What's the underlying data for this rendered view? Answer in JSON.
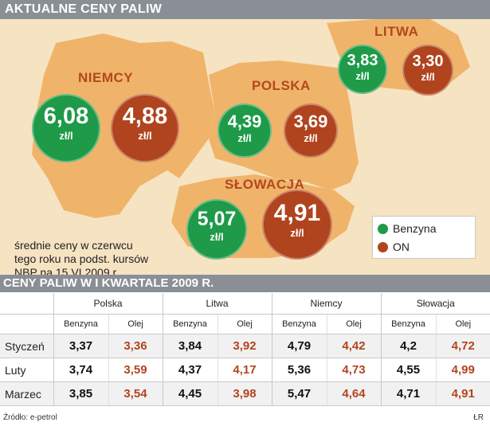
{
  "header_top": "AKTUALNE CENY PALIW",
  "header_table": "CENY PALIW W I KWARTALE 2009 R.",
  "map": {
    "countries": {
      "niemcy": "NIEMCY",
      "polska": "POLSKA",
      "litwa": "LITWA",
      "slowacja": "SŁOWACJA"
    },
    "unit": "zł/l",
    "prices": {
      "niemcy": {
        "benzyna": "6,08",
        "on": "4,88"
      },
      "polska": {
        "benzyna": "4,39",
        "on": "3,69"
      },
      "litwa": {
        "benzyna": "3,83",
        "on": "3,30"
      },
      "slowacja": {
        "benzyna": "5,07",
        "on": "4,91"
      }
    },
    "note": {
      "line1": "średnie ceny w czerwcu",
      "line2": "tego roku na podst. kursów",
      "line3": "NBP na 15 VI 2009 r."
    },
    "legend": {
      "benzyna": "Benzyna",
      "on": "ON"
    },
    "colors": {
      "benzyna": "#1e9a48",
      "on": "#b0441f",
      "land": "#efb46a",
      "background": "#f6e3c2"
    }
  },
  "table": {
    "countries": [
      "Polska",
      "Litwa",
      "Niemcy",
      "Słowacja"
    ],
    "sub_headers": {
      "benzyna": "Benzyna",
      "olej": "Olej"
    },
    "rows": [
      {
        "month": "Styczeń",
        "values": [
          "3,37",
          "3,36",
          "3,84",
          "3,92",
          "4,79",
          "4,42",
          "4,2",
          "4,72"
        ]
      },
      {
        "month": "Luty",
        "values": [
          "3,74",
          "3,59",
          "4,37",
          "4,17",
          "5,36",
          "4,73",
          "4,55",
          "4,99"
        ]
      },
      {
        "month": "Marzec",
        "values": [
          "3,85",
          "3,54",
          "4,45",
          "3,98",
          "5,47",
          "4,64",
          "4,71",
          "4,91"
        ]
      }
    ]
  },
  "footer": {
    "source": "Źródło: e-petrol",
    "signature": "ŁR"
  },
  "chart_data": [
    {
      "type": "bar",
      "title": "AKTUALNE CENY PALIW",
      "categories": [
        "NIEMCY",
        "POLSKA",
        "LITWA",
        "SŁOWACJA"
      ],
      "series": [
        {
          "name": "Benzyna",
          "values": [
            6.08,
            4.39,
            3.83,
            5.07
          ]
        },
        {
          "name": "ON",
          "values": [
            4.88,
            3.69,
            3.3,
            4.91
          ]
        }
      ],
      "ylabel": "zł/l"
    },
    {
      "type": "table",
      "title": "CENY PALIW W I KWARTALE 2009 R.",
      "columns": [
        "Polska Benzyna",
        "Polska Olej",
        "Litwa Benzyna",
        "Litwa Olej",
        "Niemcy Benzyna",
        "Niemcy Olej",
        "Słowacja Benzyna",
        "Słowacja Olej"
      ],
      "rows": [
        "Styczeń",
        "Luty",
        "Marzec"
      ],
      "values": [
        [
          3.37,
          3.36,
          3.84,
          3.92,
          4.79,
          4.42,
          4.2,
          4.72
        ],
        [
          3.74,
          3.59,
          4.37,
          4.17,
          5.36,
          4.73,
          4.55,
          4.99
        ],
        [
          3.85,
          3.54,
          4.45,
          3.98,
          5.47,
          4.64,
          4.71,
          4.91
        ]
      ]
    }
  ]
}
